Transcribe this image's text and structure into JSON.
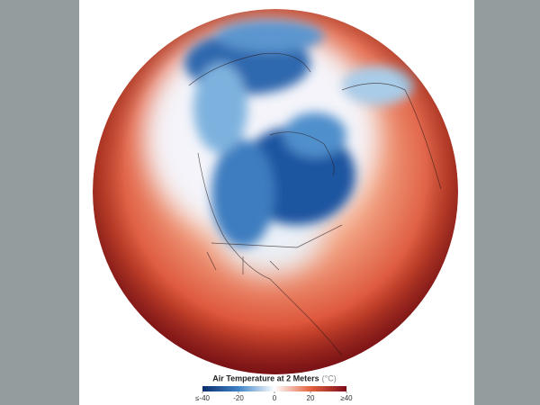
{
  "legend": {
    "title": "Air Temperature at 2 Meters",
    "unit": "(°C)",
    "colorscale": {
      "lim": [
        -40,
        40
      ],
      "ticks": [
        {
          "value": -40,
          "label": "≤-40"
        },
        -20,
        0,
        20,
        {
          "value": 40,
          "label": "≥40"
        }
      ],
      "colors": [
        "#0b2f6e",
        "#3f83c6",
        "#ffffff",
        "#e4643f",
        "#7e0a1a"
      ]
    }
  }
}
